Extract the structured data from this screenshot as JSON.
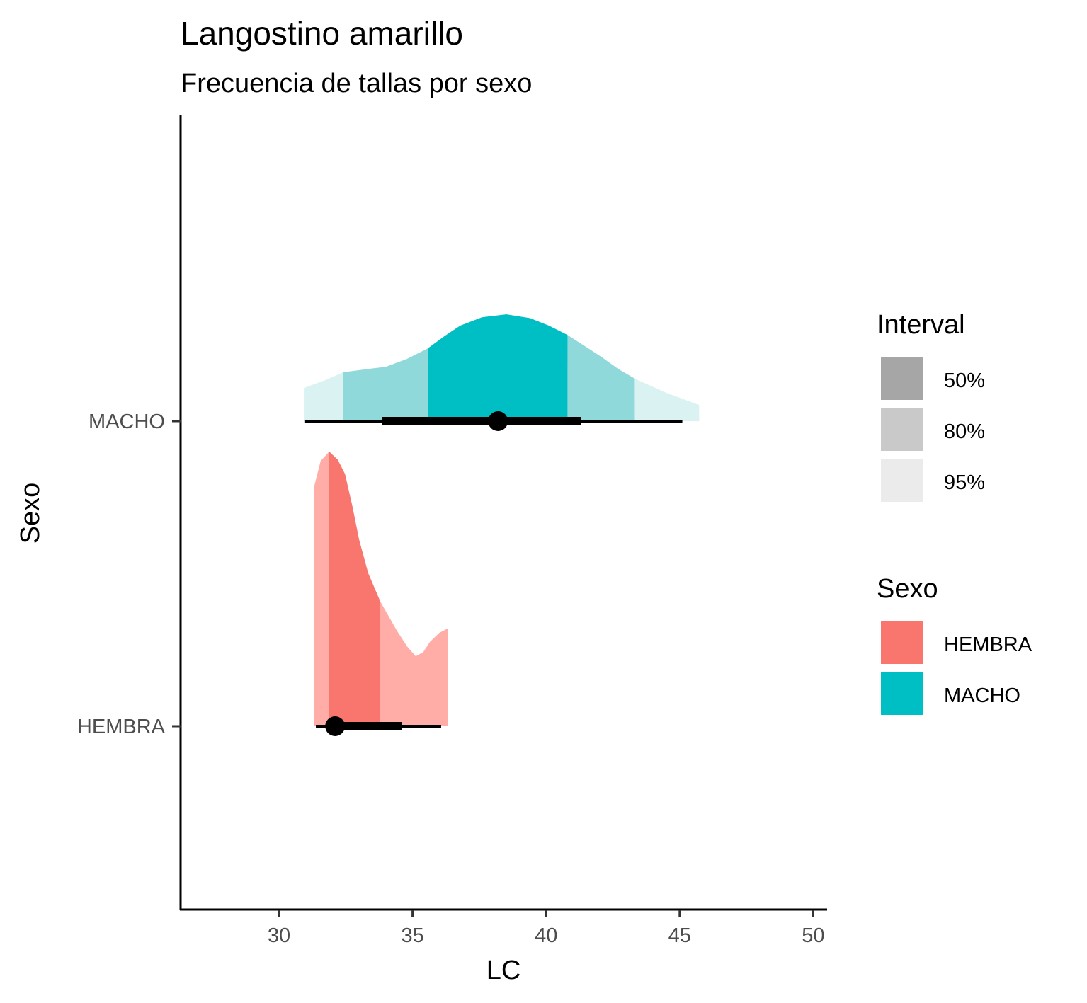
{
  "chart_data": {
    "type": "halfeye",
    "title": "Langostino amarillo",
    "subtitle": "Frecuencia de tallas por sexo",
    "xlabel": "LC",
    "ylabel": "Sexo",
    "xlim": [
      26.3,
      50.5
    ],
    "x_ticks": [
      30,
      35,
      40,
      45,
      50
    ],
    "x_tick_labels": [
      "30",
      "35",
      "40",
      "45",
      "50"
    ],
    "categories": [
      "HEMBRA",
      "MACHO"
    ],
    "grid": false,
    "series": [
      {
        "name": "HEMBRA",
        "color": "#F8766D",
        "density": {
          "x": [
            31.3,
            31.56,
            31.88,
            32.2,
            32.47,
            32.75,
            33.0,
            33.34,
            33.79,
            34.4,
            34.8,
            35.12,
            35.4,
            35.65,
            36.0,
            36.31
          ],
          "relative_height": [
            0.866,
            0.966,
            1.0,
            0.97,
            0.918,
            0.8,
            0.678,
            0.557,
            0.454,
            0.35,
            0.29,
            0.255,
            0.27,
            0.307,
            0.34,
            0.356
          ]
        },
        "intervals": [
          {
            "level": "50%",
            "range": [
              31.88,
              33.79
            ]
          },
          {
            "level": "80%",
            "range": [
              31.3,
              36.31
            ]
          }
        ],
        "point": 32.1,
        "thick_interval": [
          31.75,
          34.6
        ],
        "thin_interval": [
          31.38,
          36.07
        ]
      },
      {
        "name": "MACHO",
        "color": "#00BFC4",
        "density": {
          "x": [
            30.93,
            31.75,
            32.41,
            33.34,
            34.0,
            34.8,
            35.57,
            36.2,
            36.79,
            37.6,
            38.51,
            39.4,
            40.1,
            40.8,
            41.5,
            42.1,
            42.7,
            43.32,
            44.5,
            45.73
          ],
          "relative_height": [
            0.121,
            0.15,
            0.178,
            0.19,
            0.198,
            0.227,
            0.265,
            0.31,
            0.348,
            0.378,
            0.389,
            0.375,
            0.348,
            0.314,
            0.27,
            0.232,
            0.19,
            0.155,
            0.103,
            0.059
          ]
        },
        "intervals": [
          {
            "level": "50%",
            "range": [
              35.57,
              40.8
            ]
          },
          {
            "level": "80%",
            "range": [
              32.41,
              43.32
            ]
          },
          {
            "level": "95%",
            "range": [
              30.93,
              45.73
            ]
          }
        ],
        "point": 38.2,
        "thick_interval": [
          33.87,
          41.3
        ],
        "thin_interval": [
          30.95,
          45.1
        ]
      }
    ],
    "shades": {
      "HEMBRA": {
        "50%": "#F8766D",
        "80%": "#FFADA6",
        "95%": "#FFDDDA"
      },
      "MACHO": {
        "50%": "#00BFC4",
        "80%": "#8FD9DB",
        "95%": "#DAF2F2"
      }
    },
    "legend": {
      "placement": "right",
      "interval": {
        "title": "Interval",
        "items": [
          {
            "label": "50%",
            "color": "#A6A6A6"
          },
          {
            "label": "80%",
            "color": "#C9C9C9"
          },
          {
            "label": "95%",
            "color": "#EBEBEB"
          }
        ]
      },
      "sexo": {
        "title": "Sexo",
        "items": [
          {
            "label": "HEMBRA",
            "color": "#F8766D"
          },
          {
            "label": "MACHO",
            "color": "#00BFC4"
          }
        ]
      }
    }
  }
}
